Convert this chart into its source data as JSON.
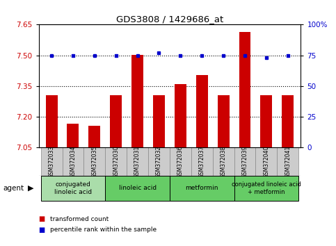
{
  "title": "GDS3808 / 1429686_at",
  "samples": [
    "GSM372033",
    "GSM372034",
    "GSM372035",
    "GSM372030",
    "GSM372031",
    "GSM372032",
    "GSM372036",
    "GSM372037",
    "GSM372038",
    "GSM372039",
    "GSM372040",
    "GSM372041"
  ],
  "bar_values": [
    7.305,
    7.165,
    7.155,
    7.305,
    7.502,
    7.305,
    7.36,
    7.405,
    7.305,
    7.615,
    7.305,
    7.305
  ],
  "percentile_values": [
    75,
    75,
    75,
    75,
    75,
    77,
    75,
    75,
    75,
    75,
    73,
    75
  ],
  "bar_color": "#cc0000",
  "percentile_color": "#0000cc",
  "ylim_left": [
    7.05,
    7.65
  ],
  "ylim_right": [
    0,
    100
  ],
  "yticks_left": [
    7.05,
    7.2,
    7.35,
    7.5,
    7.65
  ],
  "yticks_right": [
    0,
    25,
    50,
    75,
    100
  ],
  "ytick_labels_right": [
    "0",
    "25",
    "50",
    "75",
    "100%"
  ],
  "hlines": [
    7.2,
    7.35,
    7.5
  ],
  "groups": [
    {
      "label": "conjugated\nlinoleic acid",
      "start": 0,
      "end": 3,
      "color": "#aaddaa"
    },
    {
      "label": "linoleic acid",
      "start": 3,
      "end": 6,
      "color": "#66cc66"
    },
    {
      "label": "metformin",
      "start": 6,
      "end": 9,
      "color": "#66cc66"
    },
    {
      "label": "conjugated linoleic acid\n+ metformin",
      "start": 9,
      "end": 12,
      "color": "#66cc66"
    }
  ],
  "legend_items": [
    {
      "label": "transformed count",
      "color": "#cc0000"
    },
    {
      "label": "percentile rank within the sample",
      "color": "#0000cc"
    }
  ],
  "agent_label": "agent",
  "background_color": "#ffffff",
  "sample_box_color": "#cccccc",
  "bar_width": 0.55
}
